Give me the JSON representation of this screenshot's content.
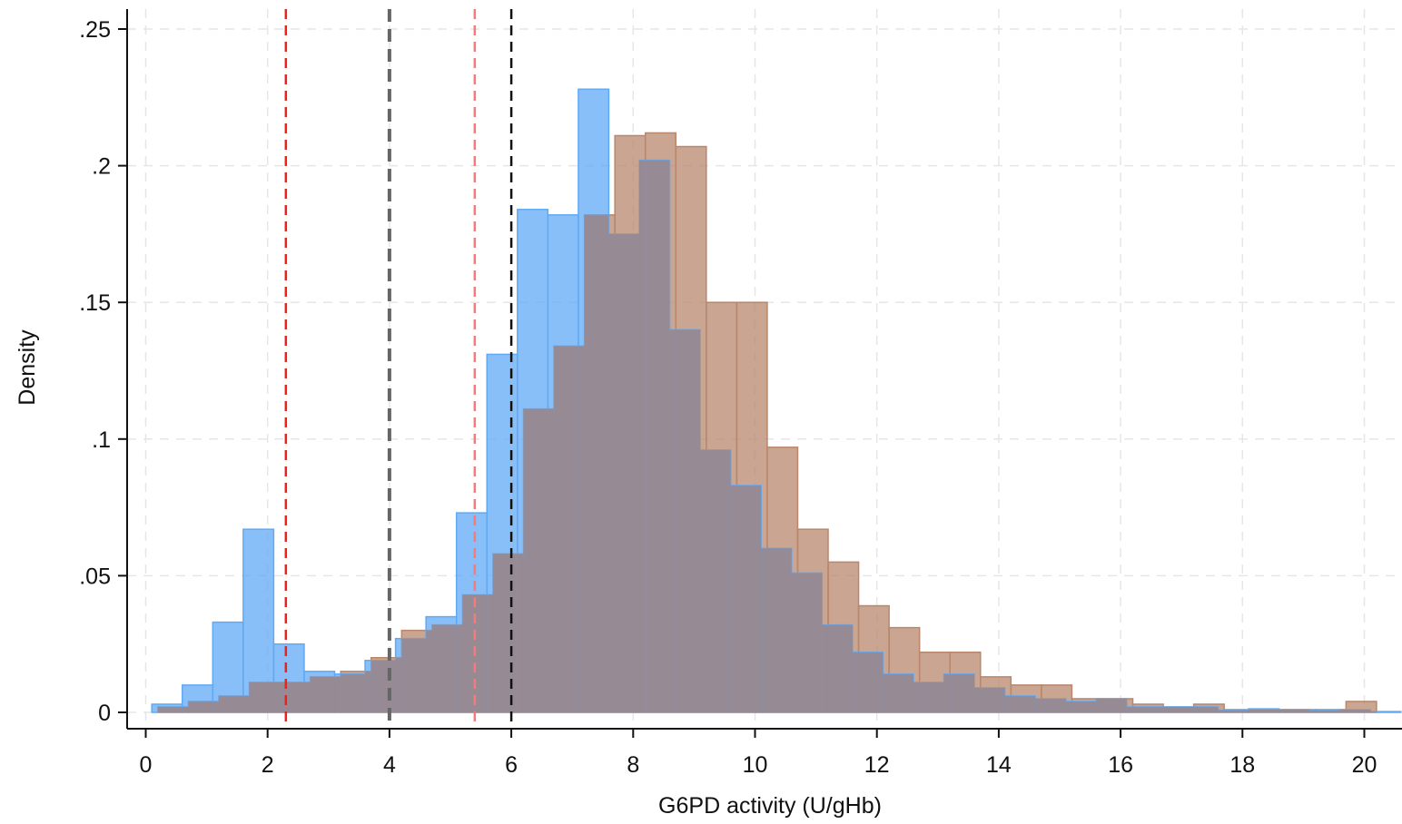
{
  "chart_data": {
    "type": "bar",
    "xlabel": "G6PD activity (U/gHb)",
    "ylabel": "Density",
    "xlim": [
      -0.35,
      20.6
    ],
    "ylim": [
      0,
      0.26
    ],
    "x_ticks": [
      0,
      2,
      4,
      6,
      8,
      10,
      12,
      14,
      16,
      18,
      20
    ],
    "x_tick_labels": [
      "0",
      "2",
      "4",
      "6",
      "8",
      "10",
      "12",
      "14",
      "16",
      "18",
      "20"
    ],
    "y_ticks": [
      0,
      0.05,
      0.1,
      0.15,
      0.2,
      0.25
    ],
    "y_tick_labels": [
      "0",
      ".05",
      ".1",
      ".15",
      ".2",
      ".25"
    ],
    "grid": true,
    "legend": "none",
    "colors": {
      "series_a": "#60aaf5",
      "series_b": "#b8876c",
      "overlap": "#968a94",
      "ref_red": "#e8231e",
      "ref_red_light": "#f57a7a",
      "ref_gray": "#666666",
      "ref_black": "#111111",
      "grid": "#e6e6e6"
    },
    "series": [
      {
        "bin_width": 0.5,
        "bins": [
          [
            0.1,
            0.003
          ],
          [
            0.6,
            0.01
          ],
          [
            1.1,
            0.033
          ],
          [
            1.6,
            0.067
          ],
          [
            2.1,
            0.025
          ],
          [
            2.6,
            0.015
          ],
          [
            3.1,
            0.014
          ],
          [
            3.6,
            0.019
          ],
          [
            4.1,
            0.027
          ],
          [
            4.6,
            0.035
          ],
          [
            5.1,
            0.073
          ],
          [
            5.6,
            0.131
          ],
          [
            6.1,
            0.184
          ],
          [
            6.6,
            0.182
          ],
          [
            7.1,
            0.228
          ],
          [
            7.6,
            0.175
          ],
          [
            8.1,
            0.202
          ],
          [
            8.6,
            0.14
          ],
          [
            9.1,
            0.096
          ],
          [
            9.6,
            0.083
          ],
          [
            10.1,
            0.06
          ],
          [
            10.6,
            0.051
          ],
          [
            11.1,
            0.032
          ],
          [
            11.6,
            0.022
          ],
          [
            12.1,
            0.014
          ],
          [
            12.6,
            0.011
          ],
          [
            13.1,
            0.014
          ],
          [
            13.6,
            0.009
          ],
          [
            14.1,
            0.006
          ],
          [
            14.6,
            0.005
          ],
          [
            15.1,
            0.004
          ],
          [
            15.6,
            0.005
          ],
          [
            16.1,
            0.002
          ],
          [
            16.6,
            0.002
          ],
          [
            17.1,
            0.002
          ],
          [
            17.6,
            0.0008
          ],
          [
            18.1,
            0.0013
          ],
          [
            18.6,
            0.001
          ],
          [
            19.1,
            0.0007
          ],
          [
            19.6,
            0.001
          ],
          [
            20.1,
            0.0003
          ]
        ]
      },
      {
        "bin_width": 0.5,
        "bins": [
          [
            0.2,
            0.002
          ],
          [
            0.7,
            0.004
          ],
          [
            1.2,
            0.006
          ],
          [
            1.7,
            0.011
          ],
          [
            2.2,
            0.011
          ],
          [
            2.7,
            0.013
          ],
          [
            3.2,
            0.015
          ],
          [
            3.7,
            0.02
          ],
          [
            4.2,
            0.03
          ],
          [
            4.7,
            0.032
          ],
          [
            5.2,
            0.043
          ],
          [
            5.7,
            0.058
          ],
          [
            6.2,
            0.111
          ],
          [
            6.7,
            0.134
          ],
          [
            7.2,
            0.182
          ],
          [
            7.7,
            0.211
          ],
          [
            8.2,
            0.212
          ],
          [
            8.7,
            0.207
          ],
          [
            9.2,
            0.15
          ],
          [
            9.7,
            0.15
          ],
          [
            10.2,
            0.097
          ],
          [
            10.7,
            0.067
          ],
          [
            11.2,
            0.055
          ],
          [
            11.7,
            0.039
          ],
          [
            12.2,
            0.031
          ],
          [
            12.7,
            0.022
          ],
          [
            13.2,
            0.022
          ],
          [
            13.7,
            0.013
          ],
          [
            14.2,
            0.01
          ],
          [
            14.7,
            0.01
          ],
          [
            15.2,
            0.005
          ],
          [
            15.7,
            0.005
          ],
          [
            16.2,
            0.003
          ],
          [
            16.7,
            0.002
          ],
          [
            17.2,
            0.003
          ],
          [
            17.7,
            0.001
          ],
          [
            18.2,
            0.001
          ],
          [
            18.7,
            0.001
          ],
          [
            19.2,
            0.001
          ],
          [
            19.7,
            0.004
          ]
        ]
      }
    ],
    "reference_lines": [
      {
        "x": 2.3,
        "color": "ref_red",
        "style": "dashed"
      },
      {
        "x": 4.0,
        "color": "ref_gray",
        "style": "dashed"
      },
      {
        "x": 5.4,
        "color": "ref_red_light",
        "style": "dashed"
      },
      {
        "x": 6.0,
        "color": "ref_black",
        "style": "dashed"
      }
    ]
  }
}
